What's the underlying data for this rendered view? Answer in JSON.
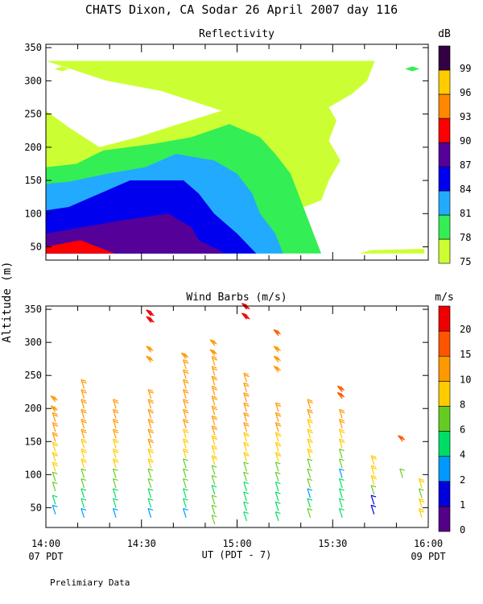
{
  "title": "CHATS Dixon, CA  Sodar  26 April 2007  day 116",
  "ylabel": "Altitude (m)",
  "xlabel": "UT  (PDT - 7)",
  "x_ticks": [
    "14:00",
    "14:30",
    "15:00",
    "15:30",
    "16:00"
  ],
  "x_left_sub": "07 PDT",
  "x_right_sub": "09 PDT",
  "footnote": "Prelimiary Data",
  "chart_data": [
    {
      "type": "heatmap",
      "title": "Reflectivity",
      "x_unit": "UT",
      "xlim": [
        "14:00",
        "16:00"
      ],
      "ylim": [
        30,
        355
      ],
      "y_ticks": [
        50,
        100,
        150,
        200,
        250,
        300,
        350
      ],
      "grid": false,
      "colorbar": {
        "title": "dB",
        "levels": [
          75,
          78,
          81,
          84,
          87,
          90,
          93,
          96,
          99
        ],
        "colors": [
          "#ccff33",
          "#33ee55",
          "#22aaff",
          "#0000ee",
          "#550099",
          "#ff0000",
          "#ff8800",
          "#ffcc00",
          "#330044"
        ]
      },
      "contours": [
        {
          "level": 75,
          "x_min": [
            0,
            28,
            46,
            63,
            72,
            74,
            77,
            74,
            76,
            74,
            80,
            84,
            86
          ],
          "y": [
            40,
            50,
            70,
            100,
            120,
            150,
            180,
            210,
            240,
            260,
            280,
            300,
            330
          ]
        },
        {
          "level": 78,
          "polygon": [
            [
              0,
              40
            ],
            [
              72,
              40
            ],
            [
              70,
              70
            ],
            [
              68,
              100
            ],
            [
              66,
              130
            ],
            [
              64,
              160
            ],
            [
              60,
              190
            ],
            [
              56,
              215
            ],
            [
              48,
              235
            ],
            [
              38,
              215
            ],
            [
              28,
              205
            ],
            [
              15,
              195
            ],
            [
              8,
              175
            ],
            [
              0,
              170
            ]
          ]
        },
        {
          "level": 81,
          "polygon": [
            [
              0,
              40
            ],
            [
              62,
              40
            ],
            [
              60,
              70
            ],
            [
              56,
              100
            ],
            [
              54,
              130
            ],
            [
              50,
              160
            ],
            [
              44,
              180
            ],
            [
              34,
              190
            ],
            [
              26,
              170
            ],
            [
              16,
              160
            ],
            [
              6,
              148
            ],
            [
              0,
              145
            ]
          ]
        },
        {
          "level": 84,
          "polygon": [
            [
              0,
              40
            ],
            [
              55,
              40
            ],
            [
              50,
              70
            ],
            [
              44,
              100
            ],
            [
              40,
              130
            ],
            [
              36,
              150
            ],
            [
              22,
              150
            ],
            [
              14,
              130
            ],
            [
              6,
              110
            ],
            [
              0,
              105
            ]
          ]
        },
        {
          "level": 87,
          "polygon": [
            [
              0,
              40
            ],
            [
              47,
              40
            ],
            [
              40,
              60
            ],
            [
              38,
              80
            ],
            [
              32,
              100
            ],
            [
              20,
              90
            ],
            [
              10,
              80
            ],
            [
              0,
              70
            ]
          ]
        },
        {
          "level": 90,
          "polygon": [
            [
              0,
              40
            ],
            [
              18,
              40
            ],
            [
              9,
              60
            ],
            [
              0,
              50
            ]
          ]
        }
      ],
      "annotations": [
        {
          "x": "14:05",
          "y": 318,
          "value": 75
        },
        {
          "x": "14:40",
          "y": 300,
          "value": 75
        },
        {
          "x": "15:55",
          "y": 318,
          "value": 78
        }
      ]
    },
    {
      "type": "scatter",
      "title": "Wind Barbs (m/s)",
      "x_unit": "UT",
      "xlim": [
        "14:00",
        "16:00"
      ],
      "ylim": [
        20,
        355
      ],
      "y_ticks": [
        50,
        100,
        150,
        200,
        250,
        300,
        350
      ],
      "grid": false,
      "colorbar": {
        "title": "m/s",
        "levels": [
          0,
          1,
          2,
          4,
          6,
          8,
          10,
          15,
          20
        ],
        "colors": [
          "#550088",
          "#0000dd",
          "#0099ff",
          "#00dd66",
          "#66cc22",
          "#ffcc00",
          "#ff9900",
          "#ff5500",
          "#ee0000"
        ]
      },
      "profiles": [
        {
          "time": "14:03",
          "heights": [
            40,
            55,
            75,
            90,
            105,
            120,
            135,
            150,
            165,
            180,
            195,
            210
          ],
          "speeds": [
            3,
            4,
            6,
            6,
            8,
            8,
            9,
            10,
            10,
            10,
            13,
            14
          ]
        },
        {
          "time": "14:12",
          "heights": [
            35,
            50,
            65,
            80,
            95,
            110,
            125,
            140,
            155,
            170,
            185,
            200,
            215,
            230
          ],
          "speeds": [
            3,
            4,
            4,
            6,
            7,
            8,
            8,
            9,
            10,
            10,
            11,
            12,
            12,
            12
          ]
        },
        {
          "time": "14:22",
          "heights": [
            35,
            50,
            65,
            80,
            95,
            110,
            125,
            140,
            155,
            170,
            185,
            200
          ],
          "speeds": [
            3,
            4,
            5,
            6,
            7,
            8,
            9,
            9,
            10,
            10,
            11,
            12
          ]
        },
        {
          "time": "14:33",
          "heights": [
            35,
            50,
            65,
            80,
            95,
            110,
            125,
            140,
            155,
            170,
            185,
            200,
            215,
            270,
            285,
            330,
            340
          ],
          "speeds": [
            3,
            4,
            4,
            6,
            7,
            8,
            9,
            10,
            10,
            11,
            12,
            12,
            12,
            13,
            13,
            21,
            21
          ]
        },
        {
          "time": "14:44",
          "heights": [
            35,
            50,
            65,
            80,
            95,
            110,
            125,
            140,
            155,
            170,
            185,
            200,
            215,
            230,
            245,
            260,
            275
          ],
          "speeds": [
            3,
            4,
            5,
            6,
            7,
            7,
            8,
            9,
            9,
            10,
            10,
            11,
            11,
            12,
            12,
            12,
            13
          ]
        },
        {
          "time": "14:53",
          "heights": [
            25,
            40,
            55,
            70,
            85,
            100,
            115,
            130,
            145,
            160,
            175,
            190,
            205,
            220,
            235,
            250,
            265,
            280,
            295
          ],
          "speeds": [
            6,
            6,
            6,
            4,
            6,
            7,
            8,
            8,
            9,
            10,
            10,
            10,
            11,
            11,
            11,
            12,
            12,
            13,
            13
          ]
        },
        {
          "time": "15:03",
          "heights": [
            30,
            45,
            60,
            75,
            90,
            105,
            120,
            135,
            150,
            165,
            180,
            195,
            210,
            225,
            240,
            335,
            350
          ],
          "speeds": [
            4,
            4,
            5,
            5,
            6,
            7,
            8,
            9,
            9,
            10,
            10,
            10,
            11,
            11,
            11,
            21,
            21
          ]
        },
        {
          "time": "15:13",
          "heights": [
            30,
            45,
            60,
            75,
            90,
            105,
            120,
            135,
            150,
            165,
            180,
            195,
            255,
            270,
            285,
            310
          ],
          "speeds": [
            4,
            4,
            5,
            4,
            6,
            7,
            8,
            9,
            9,
            10,
            10,
            10,
            13,
            13,
            13,
            15
          ]
        },
        {
          "time": "15:23",
          "heights": [
            35,
            50,
            65,
            80,
            95,
            110,
            125,
            140,
            155,
            170,
            185,
            200
          ],
          "speeds": [
            6,
            5,
            3,
            6,
            6,
            7,
            8,
            8,
            9,
            9,
            10,
            10
          ]
        },
        {
          "time": "15:33",
          "heights": [
            35,
            50,
            65,
            80,
            95,
            110,
            125,
            140,
            155,
            170,
            185,
            215,
            225
          ],
          "speeds": [
            5,
            5,
            5,
            4,
            3,
            6,
            7,
            8,
            9,
            10,
            10,
            17,
            17
          ]
        },
        {
          "time": "15:43",
          "heights": [
            40,
            55,
            70,
            85,
            100,
            115
          ],
          "speeds": [
            1,
            1,
            7,
            8,
            9,
            9
          ]
        },
        {
          "time": "15:52",
          "heights": [
            95,
            150
          ],
          "speeds": [
            6,
            15
          ]
        },
        {
          "time": "15:58",
          "heights": [
            35,
            50,
            65,
            80
          ],
          "speeds": [
            8,
            8,
            6,
            8
          ]
        }
      ]
    }
  ]
}
